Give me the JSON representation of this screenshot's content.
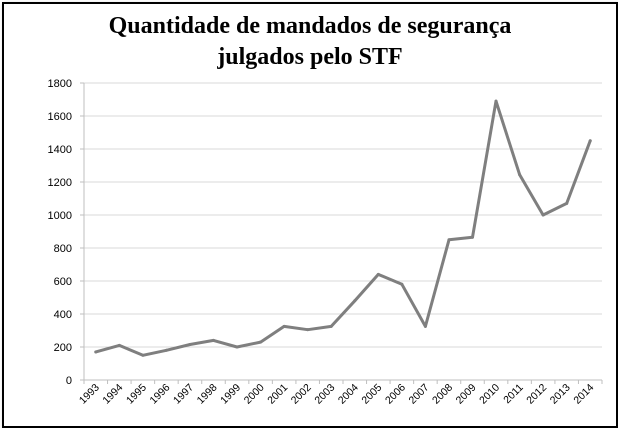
{
  "chart_data": {
    "type": "line",
    "title_lines": [
      "Quantidade de mandados de segurança",
      "julgados pelo STF"
    ],
    "xlabel": "",
    "ylabel": "",
    "x": [
      "1993",
      "1994",
      "1995",
      "1996",
      "1997",
      "1998",
      "1999",
      "2000",
      "2001",
      "2002",
      "2003",
      "2004",
      "2005",
      "2006",
      "2007",
      "2008",
      "2009",
      "2010",
      "2011",
      "2012",
      "2013",
      "2014"
    ],
    "series": [
      {
        "values": [
          170,
          210,
          150,
          180,
          215,
          240,
          200,
          230,
          325,
          305,
          325,
          480,
          640,
          580,
          325,
          850,
          865,
          1690,
          1245,
          1000,
          1070,
          1450
        ]
      }
    ],
    "ylim": [
      0,
      1800
    ],
    "yticks": [
      0,
      200,
      400,
      600,
      800,
      1000,
      1200,
      1400,
      1600,
      1800
    ],
    "grid": true,
    "legend": "none",
    "colors": {
      "line": "#7f7f7f",
      "grid": "#d9d9d9",
      "axis": "#bfbfbf"
    }
  }
}
